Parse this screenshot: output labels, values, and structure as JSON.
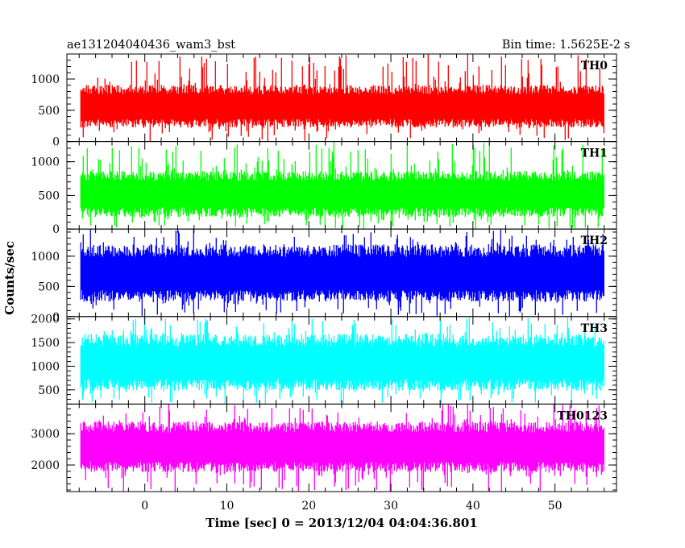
{
  "header": {
    "left": "ae131204040436_wam3_bst",
    "right": "Bin time: 1.5625E-2 s"
  },
  "chart_data": {
    "type": "line",
    "xlabel": "Time [sec] 0 = 2013/12/04 04:04:36.801",
    "ylabel": "Counts/sec",
    "xlim": [
      -9.5,
      57.5
    ],
    "x_ticks": [
      0,
      10,
      20,
      30,
      40,
      50
    ],
    "x_tick_labels": [
      "0",
      "10",
      "20",
      "30",
      "40",
      "50"
    ],
    "x_data_range": [
      -7.8,
      56.0
    ],
    "grid": false,
    "panels": [
      {
        "name": "TH0",
        "color": "#ff0000",
        "ylim": [
          0,
          1400
        ],
        "yticks": [
          0,
          500,
          1000
        ],
        "ytick_labels": [
          "0",
          "500",
          "1000"
        ],
        "band": {
          "mean": 550,
          "low": 320,
          "high": 800,
          "max_spike": 1400,
          "min_dip": 0
        }
      },
      {
        "name": "TH1",
        "color": "#00ff00",
        "ylim": [
          0,
          1300
        ],
        "yticks": [
          0,
          500,
          1000
        ],
        "ytick_labels": [
          "0",
          "500",
          "1000"
        ],
        "band": {
          "mean": 520,
          "low": 280,
          "high": 760,
          "max_spike": 1300,
          "min_dip": 0
        }
      },
      {
        "name": "TH2",
        "color": "#0000ff",
        "ylim": [
          0,
          1450
        ],
        "yticks": [
          0,
          500,
          1000
        ],
        "ytick_labels": [
          "0",
          "500",
          "1000"
        ],
        "band": {
          "mean": 700,
          "low": 380,
          "high": 1050,
          "max_spike": 1450,
          "min_dip": 0
        }
      },
      {
        "name": "TH3",
        "color": "#00ffff",
        "ylim": [
          200,
          2050
        ],
        "yticks": [
          500,
          1000,
          1500,
          2000
        ],
        "ytick_labels": [
          "500",
          "1000",
          "1500",
          "2000"
        ],
        "band": {
          "mean": 1050,
          "low": 650,
          "high": 1500,
          "max_spike": 2050,
          "min_dip": 200
        }
      },
      {
        "name": "TH0123",
        "color": "#ff00ff",
        "ylim": [
          1150,
          3950
        ],
        "yticks": [
          2000,
          3000
        ],
        "ytick_labels": [
          "2000",
          "3000"
        ],
        "band": {
          "mean": 2550,
          "low": 2000,
          "high": 3150,
          "max_spike": 3950,
          "min_dip": 1150
        }
      }
    ]
  }
}
